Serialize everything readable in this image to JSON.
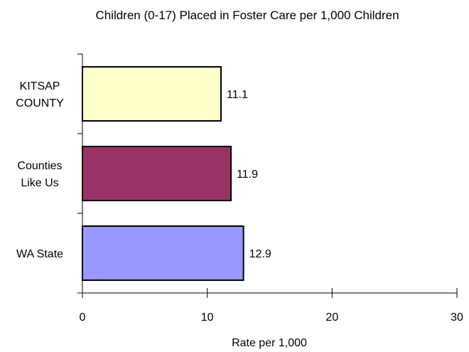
{
  "chart_data": {
    "type": "bar",
    "orientation": "horizontal",
    "title": "Children (0-17) Placed in Foster Care per 1,000 Children",
    "xlabel": "Rate per 1,000",
    "ylabel": "",
    "xlim": [
      0,
      30
    ],
    "x_ticks": [
      "0",
      "10",
      "20",
      "30"
    ],
    "grid": false,
    "legend": "none",
    "categories": [
      {
        "label_lines": [
          "KITSAP",
          "COUNTY"
        ],
        "value": 11.1,
        "value_label": "11.1",
        "color": "#ffffcc"
      },
      {
        "label_lines": [
          "Counties",
          "Like Us"
        ],
        "value": 11.9,
        "value_label": "11.9",
        "color": "#993366"
      },
      {
        "label_lines": [
          "WA State"
        ],
        "value": 12.9,
        "value_label": "12.9",
        "color": "#9999ff"
      }
    ]
  }
}
